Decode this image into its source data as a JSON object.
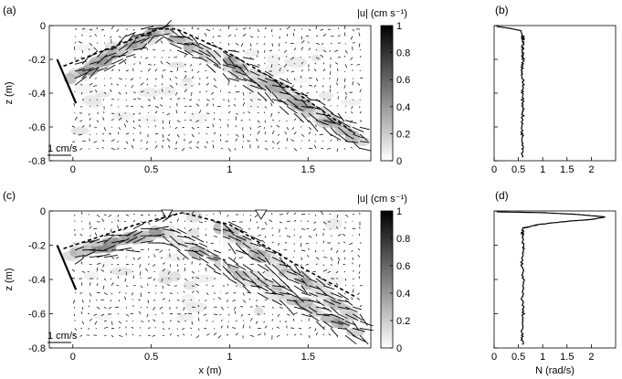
{
  "chart_data": [
    {
      "panel": "(a)",
      "type": "vector-field",
      "xlabel": "",
      "ylabel": "z (m)",
      "xlim": [
        -0.15,
        1.9
      ],
      "ylim": [
        -0.8,
        0
      ],
      "xticks": [
        "0",
        "0.5",
        "1",
        "1.5"
      ],
      "yticks": [
        "0",
        "-0.2",
        "-0.4",
        "-0.6",
        "-0.8"
      ],
      "scale_label": "1 cm/s",
      "colorbar": {
        "label": "|u| (cm s⁻¹)",
        "ticks": [
          "1",
          "0.8",
          "0.6",
          "0.4",
          "0.2",
          "0"
        ],
        "range": [
          0,
          1
        ]
      },
      "interface_line": [
        [
          -0.06,
          -0.24
        ],
        [
          0.55,
          -0.02
        ],
        [
          0.66,
          -0.02
        ],
        [
          0.95,
          -0.14
        ],
        [
          1.4,
          -0.38
        ],
        [
          1.8,
          -0.64
        ]
      ],
      "slope_line": [
        [
          -0.1,
          -0.2
        ],
        [
          0.02,
          -0.46
        ]
      ],
      "beams": [
        {
          "from": [
            0.0,
            -0.3
          ],
          "to": [
            0.55,
            -0.03
          ]
        },
        {
          "from": [
            0.6,
            -0.04
          ],
          "to": [
            1.85,
            -0.68
          ]
        },
        {
          "from": [
            0.95,
            -0.18
          ],
          "to": [
            1.75,
            -0.62
          ]
        }
      ]
    },
    {
      "panel": "(b)",
      "type": "line",
      "xlabel": "",
      "xlim": [
        0,
        2.5
      ],
      "ylim": [
        -0.8,
        0
      ],
      "xticks": [
        "0",
        "0.5",
        "1",
        "1.5",
        "2"
      ],
      "series": [
        {
          "x": [
            0.05,
            0.3,
            0.55,
            0.58,
            0.6,
            0.58,
            0.6,
            0.57,
            0.6,
            0.58,
            0.6,
            0.57,
            0.58,
            0.6,
            0.58
          ],
          "y": [
            -0.005,
            -0.015,
            -0.03,
            -0.06,
            -0.1,
            -0.15,
            -0.2,
            -0.28,
            -0.35,
            -0.42,
            -0.5,
            -0.58,
            -0.65,
            -0.72,
            -0.78
          ]
        }
      ]
    },
    {
      "panel": "(c)",
      "type": "vector-field",
      "xlabel": "x (m)",
      "ylabel": "z (m)",
      "xlim": [
        -0.15,
        1.9
      ],
      "ylim": [
        -0.8,
        0
      ],
      "xticks": [
        "0",
        "0.5",
        "1",
        "1.5"
      ],
      "yticks": [
        "0",
        "-0.2",
        "-0.4",
        "-0.6",
        "-0.8"
      ],
      "scale_label": "1 cm/s",
      "colorbar": {
        "label": "|u| (cm s⁻¹)",
        "ticks": [
          "1",
          "0.8",
          "0.6",
          "0.4",
          "0.2",
          "0"
        ],
        "range": [
          0,
          1
        ]
      },
      "interface_line": [
        [
          -0.06,
          -0.22
        ],
        [
          0.4,
          -0.08
        ],
        [
          0.7,
          -0.01
        ],
        [
          1.0,
          -0.08
        ],
        [
          1.4,
          -0.3
        ],
        [
          1.8,
          -0.5
        ]
      ],
      "slope_line": [
        [
          -0.1,
          -0.2
        ],
        [
          0.02,
          -0.46
        ]
      ],
      "markers_x": [
        0.6,
        1.2
      ],
      "beams": [
        {
          "from": [
            0.0,
            -0.26
          ],
          "to": [
            0.55,
            -0.12
          ]
        },
        {
          "from": [
            0.55,
            -0.12
          ],
          "to": [
            1.8,
            -0.7
          ]
        },
        {
          "from": [
            0.95,
            -0.1
          ],
          "to": [
            1.8,
            -0.62
          ]
        }
      ]
    },
    {
      "panel": "(d)",
      "type": "line",
      "xlabel": "N (rad/s)",
      "xlim": [
        0,
        2.5
      ],
      "ylim": [
        -0.8,
        0
      ],
      "xticks": [
        "0",
        "0.5",
        "1",
        "1.5",
        "2"
      ],
      "series": [
        {
          "x": [
            0.05,
            1.0,
            1.7,
            2.3,
            2.0,
            1.5,
            0.9,
            0.6,
            0.58,
            0.6,
            0.57,
            0.6,
            0.58,
            0.6,
            0.57,
            0.58
          ],
          "y": [
            -0.005,
            -0.01,
            -0.02,
            -0.035,
            -0.05,
            -0.06,
            -0.08,
            -0.1,
            -0.15,
            -0.22,
            -0.3,
            -0.4,
            -0.5,
            -0.6,
            -0.7,
            -0.78
          ]
        }
      ]
    }
  ]
}
